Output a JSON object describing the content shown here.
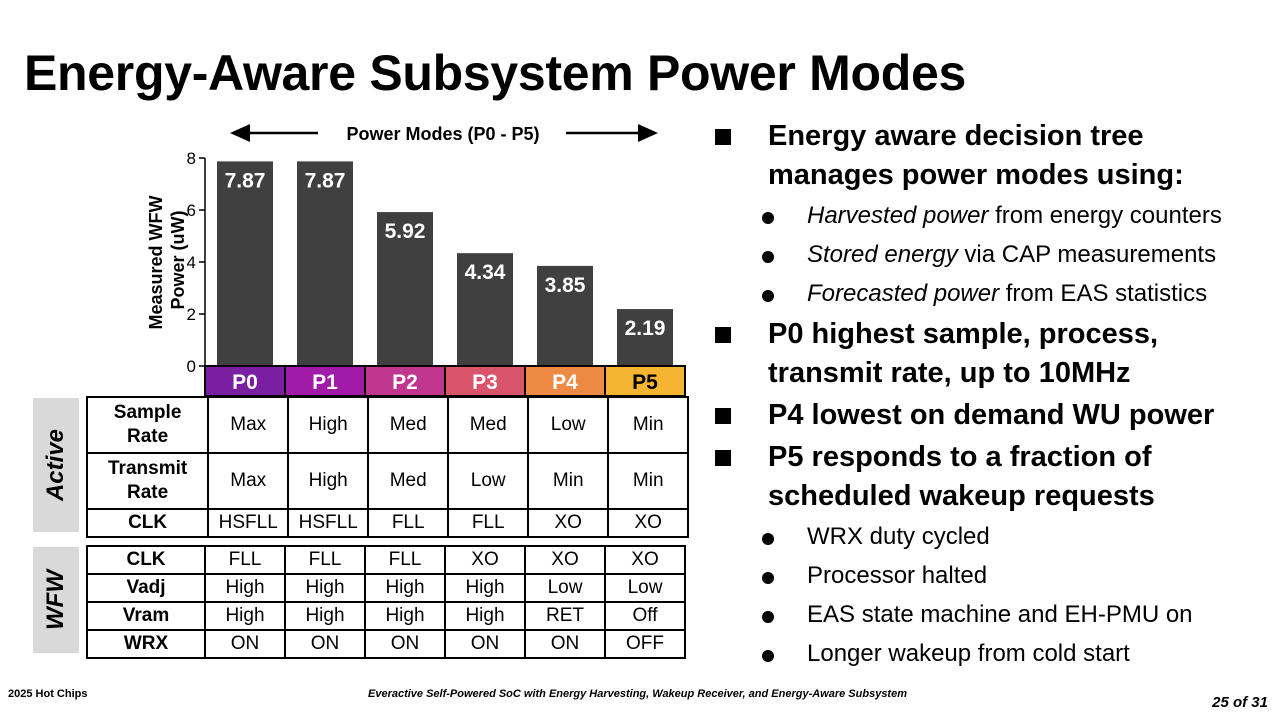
{
  "title": "Energy-Aware Subsystem Power Modes",
  "chart_data": {
    "type": "bar",
    "title": "Power Modes (P0 - P5)",
    "ylabel": "Measured WFW Power (uW)",
    "xlabel": "",
    "ylim": [
      0,
      8
    ],
    "yticks": [
      "0",
      "2",
      "4",
      "6",
      "8"
    ],
    "categories": [
      "P0",
      "P1",
      "P2",
      "P3",
      "P4",
      "P5"
    ],
    "values": [
      7.87,
      7.87,
      5.92,
      4.34,
      3.85,
      2.19
    ],
    "value_labels": [
      "7.87",
      "7.87",
      "5.92",
      "4.34",
      "3.85",
      "2.19"
    ],
    "bar_color": "#404040",
    "category_colors": [
      "#7a1fa2",
      "#a21aa8",
      "#c0368f",
      "#d9546b",
      "#ef8a45",
      "#f6b531"
    ]
  },
  "active": {
    "label": "Active",
    "rows": [
      {
        "label": "Sample Rate",
        "cells": [
          "Max",
          "High",
          "Med",
          "Med",
          "Low",
          "Min"
        ]
      },
      {
        "label": "Transmit Rate",
        "cells": [
          "Max",
          "High",
          "Med",
          "Low",
          "Min",
          "Min"
        ]
      },
      {
        "label": "CLK",
        "cells": [
          "HSFLL",
          "HSFLL",
          "FLL",
          "FLL",
          "XO",
          "XO"
        ]
      }
    ]
  },
  "wfw": {
    "label": "WFW",
    "rows": [
      {
        "label": "CLK",
        "cells": [
          "FLL",
          "FLL",
          "FLL",
          "XO",
          "XO",
          "XO"
        ]
      },
      {
        "label": "Vadj",
        "cells": [
          "High",
          "High",
          "High",
          "High",
          "Low",
          "Low"
        ]
      },
      {
        "label": "Vram",
        "cells": [
          "High",
          "High",
          "High",
          "High",
          "RET",
          "Off"
        ]
      },
      {
        "label": "WRX",
        "cells": [
          "ON",
          "ON",
          "ON",
          "ON",
          "ON",
          "OFF"
        ]
      }
    ]
  },
  "bullets": {
    "b1": "Energy aware decision tree manages power modes using:",
    "b1_subs": [
      {
        "em": "Harvested power",
        "rest": " from energy counters"
      },
      {
        "em": "Stored energy",
        "rest": " via CAP measurements"
      },
      {
        "em": "Forecasted power",
        "rest": " from EAS statistics"
      }
    ],
    "b2": "P0 highest sample, process, transmit rate, up to 10MHz",
    "b3": "P4 lowest on demand WU power",
    "b4": "P5 responds to a fraction of scheduled wakeup requests",
    "b4_subs": [
      "WRX duty cycled",
      "Processor halted",
      "EAS state machine and EH-PMU on",
      "Longer wakeup from cold start"
    ]
  },
  "footer": {
    "left": "2025 Hot Chips",
    "center": "Everactive Self-Powered SoC with Energy Harvesting, Wakeup Receiver, and Energy-Aware Subsystem",
    "page": "25 of 31"
  }
}
